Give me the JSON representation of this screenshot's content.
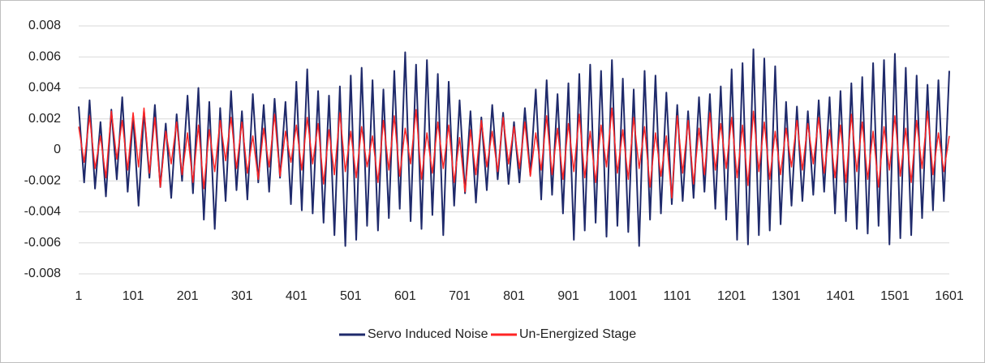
{
  "chart_data": {
    "type": "line",
    "x": [
      1,
      11,
      21,
      31,
      41,
      51,
      61,
      71,
      81,
      91,
      101,
      111,
      121,
      131,
      141,
      151,
      161,
      171,
      181,
      191,
      201,
      211,
      221,
      231,
      241,
      251,
      261,
      271,
      281,
      291,
      301,
      311,
      321,
      331,
      341,
      351,
      361,
      371,
      381,
      391,
      401,
      411,
      421,
      431,
      441,
      451,
      461,
      471,
      481,
      491,
      501,
      511,
      521,
      531,
      541,
      551,
      561,
      571,
      581,
      591,
      601,
      611,
      621,
      631,
      641,
      651,
      661,
      671,
      681,
      691,
      701,
      711,
      721,
      731,
      741,
      751,
      761,
      771,
      781,
      791,
      801,
      811,
      821,
      831,
      841,
      851,
      861,
      871,
      881,
      891,
      901,
      911,
      921,
      931,
      941,
      951,
      961,
      971,
      981,
      991,
      1001,
      1011,
      1021,
      1031,
      1041,
      1051,
      1061,
      1071,
      1081,
      1091,
      1101,
      1111,
      1121,
      1131,
      1141,
      1151,
      1161,
      1171,
      1181,
      1191,
      1201,
      1211,
      1221,
      1231,
      1241,
      1251,
      1261,
      1271,
      1281,
      1291,
      1301,
      1311,
      1321,
      1331,
      1341,
      1351,
      1361,
      1371,
      1381,
      1391,
      1401,
      1411,
      1421,
      1431,
      1441,
      1451,
      1461,
      1471,
      1481,
      1491,
      1501,
      1511,
      1521,
      1531,
      1541,
      1551,
      1561,
      1571,
      1581,
      1591,
      1601
    ],
    "series": [
      {
        "name": "Servo Induced Noise",
        "color": "#1f2a6b",
        "values": [
          0.0028,
          -0.0021,
          0.0032,
          -0.0025,
          0.0018,
          -0.003,
          0.0026,
          -0.0019,
          0.0034,
          -0.0027,
          0.0022,
          -0.0036,
          0.0025,
          -0.0018,
          0.0029,
          -0.0024,
          0.0017,
          -0.0031,
          0.0023,
          -0.002,
          0.0035,
          -0.0028,
          0.004,
          -0.0045,
          0.0031,
          -0.0051,
          0.0027,
          -0.0033,
          0.0038,
          -0.0026,
          0.0025,
          -0.0032,
          0.0036,
          -0.0021,
          0.0029,
          -0.0027,
          0.0033,
          -0.0018,
          0.0031,
          -0.0035,
          0.0044,
          -0.0039,
          0.0052,
          -0.0041,
          0.0038,
          -0.0047,
          0.0035,
          -0.0055,
          0.0041,
          -0.0062,
          0.0048,
          -0.0058,
          0.0053,
          -0.0049,
          0.0045,
          -0.0052,
          0.0039,
          -0.0044,
          0.0051,
          -0.0038,
          0.0063,
          -0.0046,
          0.0055,
          -0.0051,
          0.0058,
          -0.0042,
          0.0049,
          -0.0055,
          0.0044,
          -0.0036,
          0.0032,
          -0.0028,
          0.0025,
          -0.0034,
          0.0021,
          -0.0026,
          0.0029,
          -0.0019,
          0.0024,
          -0.0022,
          0.0018,
          -0.0021,
          0.0027,
          -0.0016,
          0.0039,
          -0.0032,
          0.0045,
          -0.0029,
          0.0036,
          -0.0041,
          0.0043,
          -0.0058,
          0.0049,
          -0.0052,
          0.0055,
          -0.0047,
          0.0051,
          -0.0056,
          0.0058,
          -0.0049,
          0.0046,
          -0.0053,
          0.0039,
          -0.0062,
          0.0051,
          -0.0045,
          0.0048,
          -0.0041,
          0.0037,
          -0.0035,
          0.0029,
          -0.0033,
          0.0025,
          -0.0031,
          0.0034,
          -0.0027,
          0.0036,
          -0.0038,
          0.0041,
          -0.0045,
          0.0052,
          -0.0058,
          0.0056,
          -0.0061,
          0.0065,
          -0.0055,
          0.0059,
          -0.0052,
          0.0054,
          -0.0048,
          0.0031,
          -0.0036,
          0.0028,
          -0.0033,
          0.0025,
          -0.0029,
          0.0032,
          -0.0027,
          0.0034,
          -0.0041,
          0.0038,
          -0.0046,
          0.0043,
          -0.0051,
          0.0047,
          -0.0054,
          0.0056,
          -0.0049,
          0.0058,
          -0.0061,
          0.0062,
          -0.0057,
          0.0053,
          -0.0055,
          0.0048,
          -0.0044,
          0.0042,
          -0.0039,
          0.0045,
          -0.0033,
          0.0051
        ]
      },
      {
        "name": "Un-Energized Stage",
        "color": "#ff2424",
        "values": [
          0.0015,
          -0.0008,
          0.0022,
          -0.0012,
          0.0009,
          -0.0018,
          0.0025,
          -0.0006,
          0.0019,
          -0.0013,
          0.0024,
          -0.0011,
          0.0027,
          -0.0015,
          0.0021,
          -0.0024,
          0.0012,
          -0.0009,
          0.0018,
          -0.0016,
          0.0011,
          -0.0021,
          0.0016,
          -0.0025,
          0.0013,
          -0.0014,
          0.0019,
          -0.0007,
          0.0021,
          -0.0012,
          0.0018,
          -0.0015,
          0.0009,
          -0.0019,
          0.0014,
          -0.0011,
          0.0023,
          -0.0017,
          0.0012,
          -0.0008,
          0.0016,
          -0.0013,
          0.0021,
          -0.0009,
          0.0017,
          -0.0022,
          0.0013,
          -0.0016,
          0.0024,
          -0.0014,
          0.0012,
          -0.0018,
          0.0015,
          -0.0011,
          0.0009,
          -0.0021,
          0.0019,
          -0.0013,
          0.0022,
          -0.0017,
          0.0014,
          -0.0009,
          0.0026,
          -0.0019,
          0.0011,
          -0.0015,
          0.0018,
          -0.0012,
          0.0016,
          -0.0021,
          0.0008,
          -0.0027,
          0.0013,
          -0.0016,
          0.0019,
          -0.0011,
          0.0012,
          -0.0014,
          0.0021,
          -0.0009,
          0.0015,
          -0.0012,
          0.0018,
          -0.0017,
          0.0011,
          -0.0013,
          0.0022,
          -0.0016,
          0.0014,
          -0.0019,
          0.0017,
          -0.0014,
          0.0023,
          -0.0018,
          0.0012,
          -0.0021,
          0.0016,
          -0.0011,
          0.0027,
          -0.0015,
          0.0013,
          -0.0019,
          0.0021,
          -0.0012,
          0.0015,
          -0.0024,
          0.0011,
          -0.0017,
          0.0009,
          -0.0031,
          0.0022,
          -0.0015,
          0.0019,
          -0.0022,
          0.0014,
          -0.0016,
          0.0024,
          -0.0013,
          0.0017,
          -0.0012,
          0.0021,
          -0.0018,
          0.0016,
          -0.0023,
          0.0025,
          -0.0014,
          0.0018,
          -0.0019,
          0.0012,
          -0.0016,
          0.0014,
          -0.0011,
          0.0019,
          -0.0013,
          0.0017,
          -0.0009,
          0.0021,
          -0.0015,
          0.0013,
          -0.0018,
          0.0016,
          -0.0021,
          0.0023,
          -0.0014,
          0.0018,
          -0.0019,
          0.0012,
          -0.0024,
          0.0015,
          -0.0013,
          0.0022,
          -0.0017,
          0.0014,
          -0.0021,
          0.0019,
          -0.0012,
          0.0025,
          -0.0016,
          0.0011,
          -0.0014,
          0.0009
        ]
      }
    ],
    "xlim": [
      1,
      1601
    ],
    "xticks": [
      1,
      101,
      201,
      301,
      401,
      501,
      601,
      701,
      801,
      901,
      1001,
      1101,
      1201,
      1301,
      1401,
      1501,
      1601
    ],
    "ylim": [
      -0.008,
      0.008
    ],
    "yticks": [
      -0.008,
      -0.006,
      -0.004,
      -0.002,
      0,
      0.002,
      0.004,
      0.006,
      0.008
    ],
    "grid": true,
    "legend": "bottom"
  }
}
